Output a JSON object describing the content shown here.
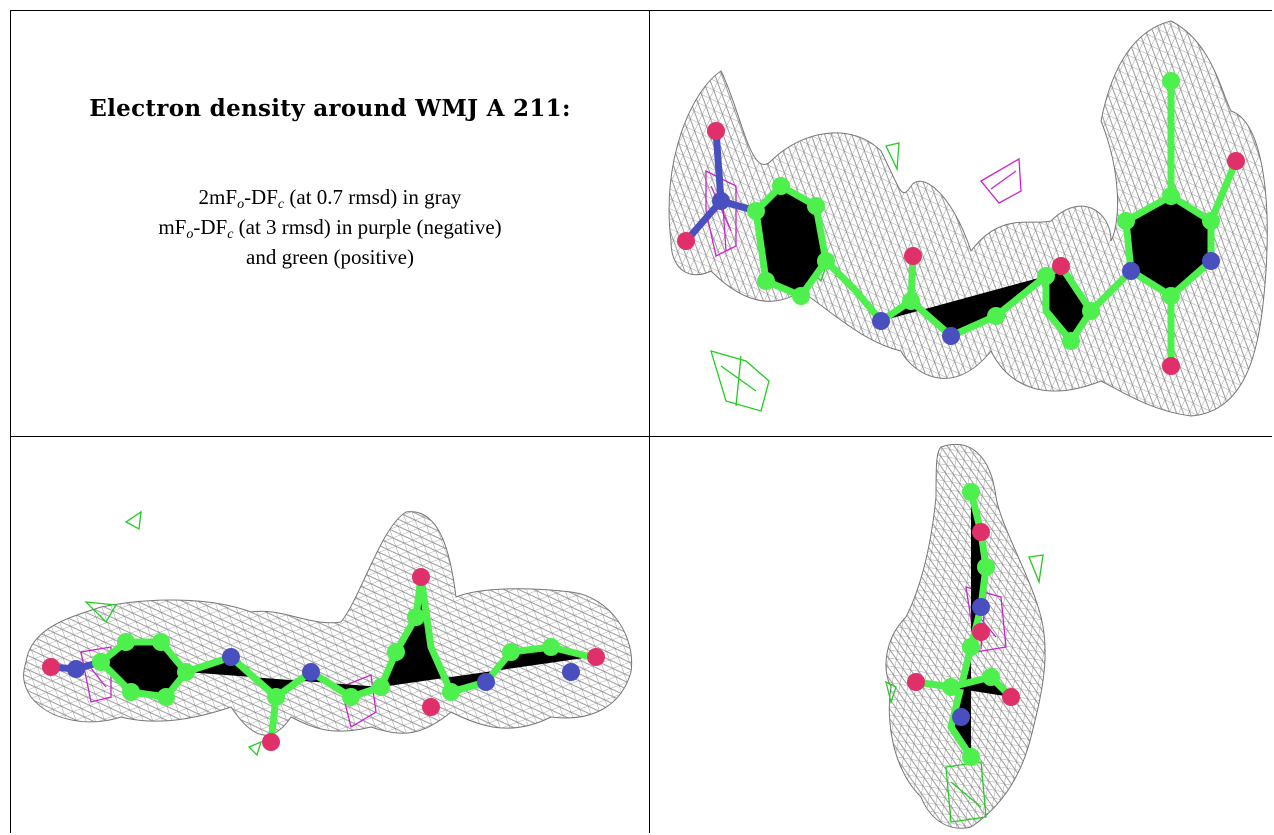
{
  "heading": "Electron density around WMJ A 211:",
  "legend": {
    "line1": {
      "pre": "2mF",
      "sub1": "o",
      "mid": "-DF",
      "sub2": "c",
      "post": " (at 0.7 rmsd) in gray"
    },
    "line2": {
      "pre": "mF",
      "sub1": "o",
      "mid": "-DF",
      "sub2": "c",
      "post": " (at 3 rmsd) in purple (negative)"
    },
    "line3": "and green (positive)"
  },
  "colors": {
    "mesh_gray": "#8a8a8a",
    "carbon_green": "#4ef04e",
    "nitrogen_blue": "#4a4fbf",
    "oxygen_red": "#e0306a",
    "negative_purple": "#cc22cc",
    "positive_green": "#22cc22"
  }
}
